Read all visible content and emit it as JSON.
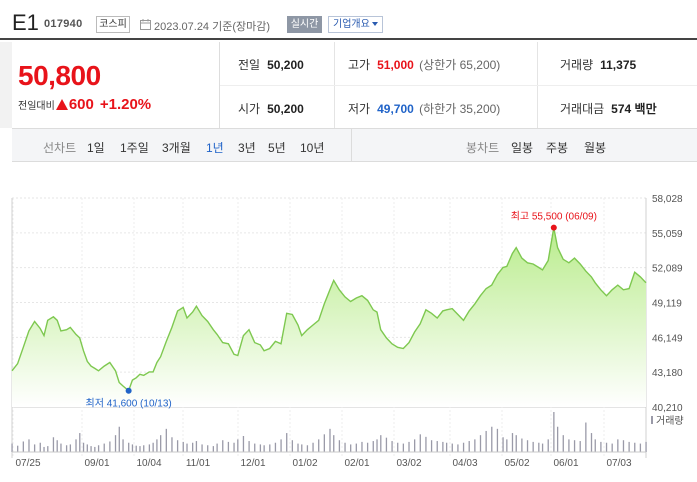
{
  "header": {
    "name": "E1",
    "code": "017940",
    "market": "코스피",
    "date_text": "2023.07.24  기준(장마감)",
    "realtime_label": "실시간",
    "company_label": "기업개요"
  },
  "price": {
    "current": "50,800",
    "change_label": "전일대비",
    "change_abs": "600",
    "change_pct": "+1.20%",
    "direction": "up"
  },
  "stats": {
    "prev_close_label": "전일",
    "prev_close": "50,200",
    "high_label": "고가",
    "high": "51,000",
    "upper_limit": "(상한가 65,200)",
    "volume_label": "거래량",
    "volume": "11,375",
    "open_label": "시가",
    "open": "50,200",
    "low_label": "저가",
    "low": "49,700",
    "lower_limit": "(하한가 35,200)",
    "amount_label": "거래대금",
    "amount": "574 백만"
  },
  "line_chart_label": "선차트",
  "periods": [
    "1일",
    "1주일",
    "3개월",
    "1년",
    "3년",
    "5년",
    "10년"
  ],
  "selected_period": "1년",
  "candle_chart_label": "봉차트",
  "candle_periods": [
    "일봉",
    "주봉",
    "월봉"
  ],
  "colors": {
    "up": "#e8131a",
    "down": "#2063c8",
    "area": "#c8f0a0",
    "line": "#7ec850"
  },
  "chart_data": {
    "type": "area",
    "y_ticks": [
      "58,028",
      "55,059",
      "52,089",
      "49,119",
      "46,149",
      "43,180",
      "40,210"
    ],
    "ylim": [
      40210,
      58028
    ],
    "x_ticks": [
      "07/25",
      "09/01",
      "10/04",
      "11/01",
      "12/01",
      "01/02",
      "02/01",
      "03/02",
      "04/03",
      "05/02",
      "06/01",
      "07/03"
    ],
    "max_label": "최고 55,500 (06/09)",
    "min_label": "최저 41,600 (10/13)",
    "volume_label": "거래량",
    "grid": true,
    "prices": [
      43300,
      43900,
      45300,
      46700,
      47500,
      46900,
      46300,
      47600,
      47900,
      47600,
      46700,
      46800,
      47000,
      46400,
      46100,
      45000,
      44100,
      43700,
      43500,
      43300,
      43700,
      44000,
      43300,
      42300,
      42000,
      41600,
      42500,
      42700,
      43000,
      42900,
      43200,
      43200,
      44000,
      44500,
      45800,
      47000,
      48400,
      48700,
      47800,
      48300,
      48800,
      48000,
      47500,
      46800,
      46400,
      45700,
      45600,
      44700,
      44600,
      46300,
      46800,
      45700,
      45500,
      45000,
      45200,
      45800,
      45600,
      48200,
      48100,
      47200,
      46300,
      46800,
      47200,
      47600,
      49000,
      50200,
      51000,
      50200,
      49600,
      49200,
      49500,
      49700,
      49300,
      48500,
      48300,
      46800,
      46100,
      45600,
      45300,
      45200,
      45700,
      46600,
      47300,
      48500,
      48200,
      47800,
      48400,
      48500,
      48600,
      48100,
      47600,
      48400,
      49000,
      49700,
      50300,
      50600,
      51500,
      52100,
      52200,
      53300,
      53800,
      52900,
      52500,
      52400,
      52100,
      51900,
      52700,
      55500,
      53800,
      52800,
      52500,
      52900,
      52400,
      51800,
      51300,
      50800,
      50200,
      49700,
      50200,
      50600,
      50200,
      50300,
      51700,
      51300,
      50800
    ],
    "price_days": [
      0,
      3,
      6,
      9,
      12,
      15,
      17,
      19,
      22,
      24,
      26,
      29,
      31,
      34,
      36,
      38,
      40,
      42,
      44,
      46,
      49,
      52,
      55,
      57,
      59,
      62,
      64,
      66,
      68,
      70,
      73,
      75,
      77,
      79,
      82,
      85,
      88,
      91,
      93,
      96,
      98,
      101,
      104,
      107,
      109,
      112,
      115,
      118,
      120,
      123,
      126,
      129,
      132,
      134,
      137,
      140,
      143,
      146,
      149,
      152,
      154,
      157,
      160,
      163,
      166,
      169,
      171,
      174,
      177,
      180,
      183,
      186,
      189,
      192,
      194,
      196,
      199,
      202,
      205,
      208,
      211,
      214,
      217,
      220,
      223,
      226,
      229,
      231,
      234,
      237,
      240,
      243,
      246,
      249,
      252,
      255,
      258,
      261,
      263,
      266,
      268,
      271,
      274,
      277,
      280,
      282,
      285,
      288,
      290,
      293,
      296,
      299,
      302,
      305,
      308,
      310,
      313,
      316,
      319,
      322,
      325,
      328,
      331,
      334,
      337
    ],
    "volumes": [
      20,
      15,
      25,
      30,
      18,
      22,
      12,
      14,
      35,
      28,
      20,
      16,
      18,
      30,
      45,
      22,
      18,
      14,
      12,
      16,
      20,
      25,
      40,
      60,
      30,
      22,
      18,
      15,
      14,
      16,
      18,
      22,
      30,
      40,
      55,
      35,
      28,
      24,
      20,
      22,
      26,
      18,
      16,
      14,
      20,
      28,
      24,
      22,
      30,
      38,
      26,
      20,
      18,
      16,
      18,
      22,
      30,
      45,
      28,
      20,
      18,
      16,
      22,
      30,
      42,
      55,
      40,
      28,
      22,
      18,
      20,
      24,
      22,
      26,
      30,
      40,
      34,
      26,
      22,
      20,
      24,
      30,
      42,
      36,
      28,
      26,
      24,
      22,
      20,
      18,
      22,
      26,
      30,
      40,
      50,
      60,
      55,
      35,
      30,
      45,
      40,
      32,
      28,
      24,
      22,
      20,
      30,
      95,
      60,
      40,
      30,
      28,
      26,
      70,
      45,
      30,
      24,
      22,
      20,
      30,
      28,
      24,
      22,
      20,
      24
    ]
  }
}
